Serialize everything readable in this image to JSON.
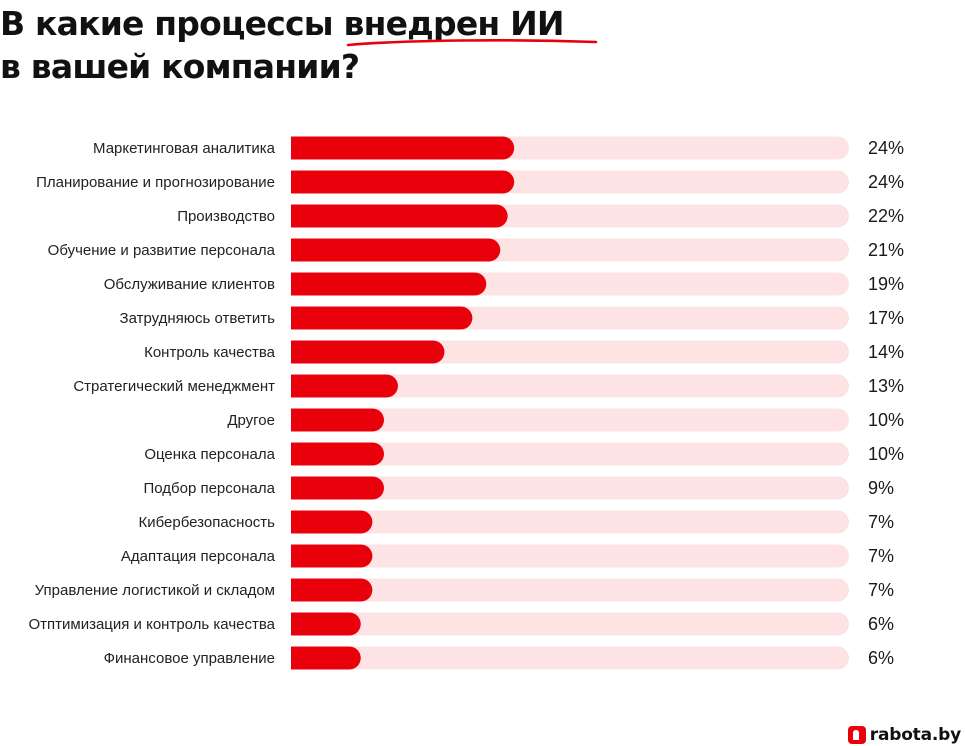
{
  "title": {
    "line1": "В какие процессы внедрен ИИ",
    "line2": "в вашей компании?"
  },
  "brand": {
    "logo_text": "rabota.by"
  },
  "colors": {
    "bar": "#e8000b",
    "track": "#fde3e3",
    "accent_underline": "#e8000b"
  },
  "chart_data": {
    "type": "bar",
    "orientation": "horizontal",
    "title": "В какие процессы внедрен ИИ в вашей компании?",
    "xlim": [
      0,
      60
    ],
    "grid": false,
    "legend": "none",
    "categories": [
      "Маркетинговая аналитика",
      "Планирование и прогнозирование",
      "Производство",
      "Обучение и развитие персонала",
      "Обслуживание клиентов",
      "Затрудняюсь ответить",
      "Контроль качества",
      "Стратегический менеджмент",
      "Другое",
      "Оценка персонала",
      "Подбор персонала",
      "Кибербезопасность",
      "Адаптация персонала",
      "Управление логистикой и складом",
      "Отптимизация и контроль качества",
      "Финансовое управление"
    ],
    "values": [
      24,
      24,
      22,
      21,
      19,
      17,
      14,
      13,
      10,
      10,
      9,
      7,
      7,
      7,
      6,
      6
    ],
    "bar_values": [
      24,
      24,
      23.3,
      22.5,
      21,
      19.5,
      16.5,
      11.5,
      10,
      10,
      10,
      8.75,
      8.75,
      8.75,
      7.5,
      7.5
    ],
    "value_labels": [
      "24%",
      "24%",
      "22%",
      "21%",
      "19%",
      "17%",
      "14%",
      "13%",
      "10%",
      "10%",
      "9%",
      "7%",
      "7%",
      "7%",
      "6%",
      "6%"
    ]
  }
}
